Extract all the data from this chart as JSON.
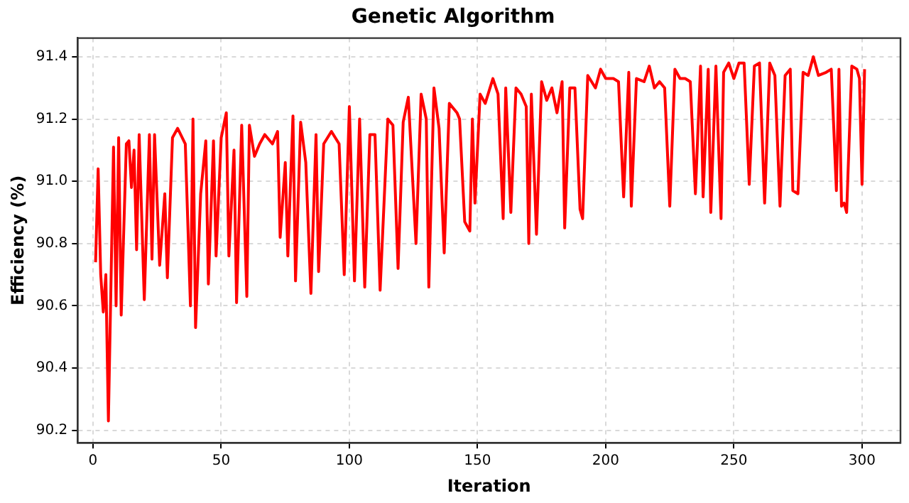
{
  "chart_data": {
    "type": "line",
    "title": "Genetic Algorithm",
    "xlabel": "Iteration",
    "ylabel": "Efficiency (%)",
    "x": [
      1,
      2,
      3,
      4,
      5,
      6,
      8,
      9,
      10,
      11,
      13,
      14,
      15,
      16,
      17,
      18,
      20,
      22,
      23,
      24,
      26,
      28,
      29,
      31,
      33,
      36,
      38,
      39,
      40,
      42,
      44,
      45,
      47,
      48,
      50,
      52,
      53,
      55,
      56,
      58,
      60,
      61,
      63,
      65,
      67,
      70,
      72,
      73,
      75,
      76,
      78,
      79,
      81,
      83,
      85,
      87,
      88,
      90,
      93,
      96,
      98,
      100,
      102,
      104,
      106,
      108,
      110,
      112,
      115,
      117,
      119,
      121,
      123,
      126,
      128,
      130,
      131,
      133,
      135,
      137,
      139,
      142,
      143,
      145,
      147,
      148,
      149,
      151,
      153,
      156,
      158,
      160,
      161,
      163,
      165,
      167,
      169,
      170,
      171,
      173,
      175,
      177,
      179,
      181,
      183,
      184,
      186,
      188,
      190,
      191,
      193,
      196,
      198,
      200,
      203,
      205,
      207,
      209,
      210,
      212,
      215,
      217,
      219,
      221,
      223,
      225,
      227,
      229,
      231,
      233,
      235,
      237,
      238,
      240,
      241,
      243,
      245,
      246,
      248,
      250,
      252,
      254,
      256,
      258,
      260,
      262,
      264,
      266,
      268,
      270,
      272,
      273,
      275,
      277,
      279,
      281,
      283,
      286,
      288,
      290,
      291,
      292,
      293,
      294,
      296,
      298,
      299,
      300,
      301
    ],
    "series": [
      {
        "color": "#ff0000",
        "values": [
          90.74,
          91.04,
          90.7,
          90.58,
          90.7,
          90.23,
          91.11,
          90.6,
          91.14,
          90.57,
          91.12,
          91.13,
          90.98,
          91.1,
          90.78,
          91.15,
          90.62,
          91.15,
          90.75,
          91.15,
          90.73,
          90.96,
          90.69,
          91.14,
          91.17,
          91.12,
          90.6,
          91.2,
          90.53,
          90.96,
          91.13,
          90.67,
          91.13,
          90.76,
          91.14,
          91.22,
          90.76,
          91.1,
          90.61,
          91.18,
          90.63,
          91.18,
          91.08,
          91.12,
          91.15,
          91.12,
          91.16,
          90.82,
          91.06,
          90.76,
          91.21,
          90.68,
          91.19,
          91.06,
          90.64,
          91.15,
          90.71,
          91.12,
          91.16,
          91.12,
          90.7,
          91.24,
          90.68,
          91.2,
          90.66,
          91.15,
          91.15,
          90.65,
          91.2,
          91.18,
          90.72,
          91.19,
          91.27,
          90.8,
          91.28,
          91.2,
          90.66,
          91.3,
          91.17,
          90.77,
          91.25,
          91.22,
          91.2,
          90.87,
          90.84,
          91.2,
          90.93,
          91.28,
          91.25,
          91.33,
          91.28,
          90.88,
          91.3,
          90.9,
          91.3,
          91.28,
          91.24,
          90.8,
          91.28,
          90.83,
          91.32,
          91.26,
          91.3,
          91.22,
          91.32,
          90.85,
          91.3,
          91.3,
          90.91,
          90.88,
          91.34,
          91.3,
          91.36,
          91.33,
          91.33,
          91.32,
          90.95,
          91.35,
          90.92,
          91.33,
          91.32,
          91.37,
          91.3,
          91.32,
          91.3,
          90.92,
          91.36,
          91.33,
          91.33,
          91.32,
          90.96,
          91.37,
          90.95,
          91.36,
          90.9,
          91.37,
          90.88,
          91.35,
          91.38,
          91.33,
          91.38,
          91.38,
          90.99,
          91.37,
          91.38,
          90.93,
          91.38,
          91.34,
          90.92,
          91.34,
          91.36,
          90.97,
          90.96,
          91.35,
          91.34,
          91.4,
          91.34,
          91.35,
          91.36,
          90.97,
          91.36,
          90.92,
          90.93,
          90.9,
          91.37,
          91.36,
          91.33,
          90.99,
          91.36
        ]
      }
    ],
    "xlim": [
      -6,
      315
    ],
    "xticks": [
      0,
      50,
      100,
      150,
      200,
      250,
      300
    ],
    "ylim": [
      90.16,
      91.46
    ],
    "yticks": [
      90.2,
      90.4,
      90.6,
      90.8,
      {
        "value": 91.0,
        "label": "91.0"
      },
      91.2,
      91.4
    ],
    "grid": true,
    "legend": false,
    "marker": "none",
    "line_style": "solid"
  }
}
